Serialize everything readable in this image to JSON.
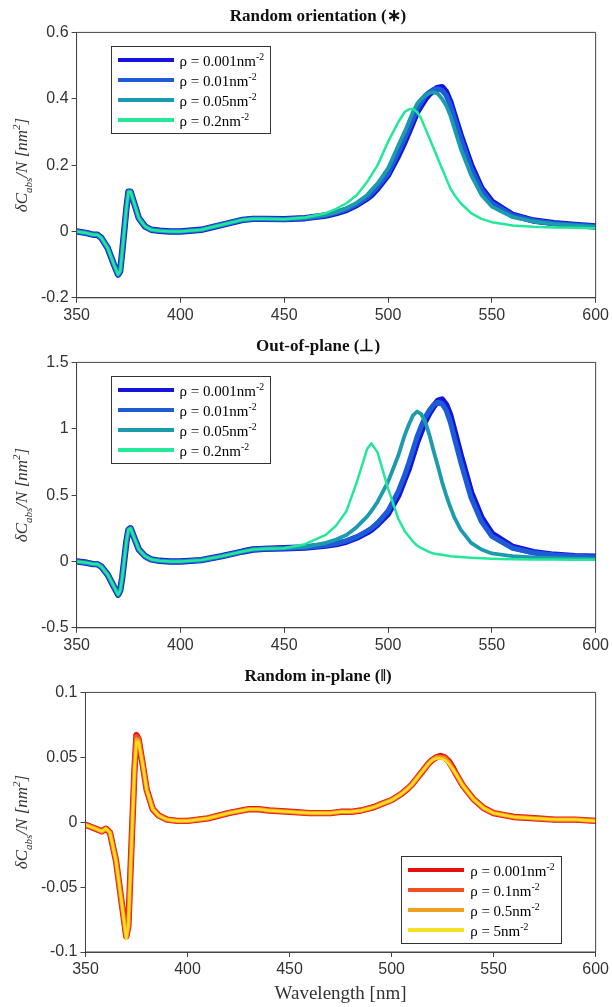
{
  "chart_data": [
    {
      "type": "line",
      "title": "Random orientation (∗)",
      "ylabel": "δC$_{abs}$/N [nm$^{2}$]",
      "xlim": [
        350,
        600
      ],
      "xticks": [
        350,
        400,
        450,
        500,
        550,
        600
      ],
      "ylim": [
        -0.2,
        0.6
      ],
      "yticks": [
        -0.2,
        0,
        0.2,
        0.4,
        0.6
      ],
      "grid": false,
      "legend": "top left",
      "marker": "none",
      "line_style": "solid",
      "x": [
        350,
        355,
        358,
        360,
        362,
        365,
        368,
        370,
        371,
        372,
        374,
        375,
        376,
        378,
        380,
        383,
        386,
        390,
        395,
        400,
        410,
        420,
        430,
        435,
        440,
        450,
        460,
        470,
        475,
        480,
        485,
        490,
        492,
        495,
        500,
        505,
        508,
        510,
        512,
        514,
        516,
        518,
        520,
        522,
        524,
        526,
        528,
        530,
        532,
        535,
        540,
        545,
        550,
        560,
        570,
        580,
        590,
        600
      ],
      "series": [
        {
          "name": "ρ = 0.001nm$^{-2}$",
          "color": "#1414dc",
          "values": [
            0,
            -0.005,
            -0.01,
            -0.01,
            -0.02,
            -0.05,
            -0.1,
            -0.13,
            -0.12,
            -0.06,
            0.07,
            0.12,
            0.12,
            0.08,
            0.04,
            0.015,
            0.005,
            0.002,
            0,
            0,
            0.005,
            0.02,
            0.035,
            0.038,
            0.038,
            0.037,
            0.04,
            0.048,
            0.055,
            0.065,
            0.08,
            0.1,
            0.11,
            0.13,
            0.17,
            0.23,
            0.27,
            0.3,
            0.33,
            0.36,
            0.38,
            0.4,
            0.415,
            0.425,
            0.433,
            0.435,
            0.42,
            0.39,
            0.35,
            0.29,
            0.2,
            0.13,
            0.09,
            0.05,
            0.033,
            0.025,
            0.02,
            0.015
          ]
        },
        {
          "name": "ρ = 0.01nm$^{-2}$",
          "color": "#1c5cd6",
          "values": [
            0,
            -0.005,
            -0.01,
            -0.01,
            -0.02,
            -0.05,
            -0.1,
            -0.13,
            -0.12,
            -0.06,
            0.07,
            0.12,
            0.12,
            0.08,
            0.04,
            0.015,
            0.005,
            0.002,
            0,
            0,
            0.005,
            0.02,
            0.035,
            0.038,
            0.038,
            0.037,
            0.04,
            0.049,
            0.057,
            0.067,
            0.082,
            0.103,
            0.115,
            0.135,
            0.175,
            0.24,
            0.28,
            0.31,
            0.34,
            0.37,
            0.39,
            0.41,
            0.42,
            0.428,
            0.43,
            0.425,
            0.41,
            0.38,
            0.34,
            0.28,
            0.19,
            0.125,
            0.085,
            0.048,
            0.032,
            0.024,
            0.019,
            0.015
          ]
        },
        {
          "name": "ρ = 0.05nm$^{-2}$",
          "color": "#1c9aae",
          "values": [
            0,
            -0.005,
            -0.01,
            -0.01,
            -0.02,
            -0.05,
            -0.1,
            -0.13,
            -0.12,
            -0.06,
            0.07,
            0.12,
            0.12,
            0.08,
            0.04,
            0.015,
            0.005,
            0.002,
            0,
            0,
            0.005,
            0.02,
            0.035,
            0.038,
            0.038,
            0.037,
            0.041,
            0.05,
            0.058,
            0.07,
            0.087,
            0.11,
            0.125,
            0.145,
            0.19,
            0.26,
            0.3,
            0.33,
            0.36,
            0.385,
            0.4,
            0.41,
            0.418,
            0.42,
            0.415,
            0.4,
            0.38,
            0.35,
            0.31,
            0.25,
            0.17,
            0.11,
            0.075,
            0.043,
            0.03,
            0.022,
            0.018,
            0.014
          ]
        },
        {
          "name": "ρ = 0.2nm$^{-2}$",
          "color": "#22e898",
          "values": [
            0,
            -0.005,
            -0.01,
            -0.01,
            -0.02,
            -0.05,
            -0.1,
            -0.13,
            -0.12,
            -0.06,
            0.07,
            0.12,
            0.12,
            0.08,
            0.04,
            0.015,
            0.005,
            0.002,
            0,
            0,
            0.005,
            0.02,
            0.035,
            0.038,
            0.038,
            0.037,
            0.042,
            0.055,
            0.068,
            0.085,
            0.11,
            0.15,
            0.17,
            0.2,
            0.27,
            0.33,
            0.36,
            0.368,
            0.37,
            0.36,
            0.34,
            0.31,
            0.28,
            0.25,
            0.22,
            0.19,
            0.16,
            0.13,
            0.11,
            0.085,
            0.055,
            0.038,
            0.028,
            0.018,
            0.014,
            0.012,
            0.011,
            0.01
          ]
        }
      ]
    },
    {
      "type": "line",
      "title": "Out-of-plane (⊥)",
      "ylabel": "δC$_{abs}$/N [nm$^{2}$]",
      "xlim": [
        350,
        600
      ],
      "xticks": [
        350,
        400,
        450,
        500,
        550,
        600
      ],
      "ylim": [
        -0.5,
        1.5
      ],
      "yticks": [
        -0.5,
        0,
        0.5,
        1,
        1.5
      ],
      "grid": false,
      "legend": "top left",
      "marker": "none",
      "line_style": "solid",
      "x": [
        350,
        355,
        358,
        360,
        362,
        365,
        368,
        370,
        371,
        372,
        374,
        375,
        376,
        378,
        380,
        383,
        386,
        390,
        395,
        400,
        410,
        420,
        430,
        435,
        440,
        450,
        460,
        470,
        475,
        480,
        485,
        490,
        492,
        495,
        500,
        505,
        508,
        510,
        512,
        514,
        516,
        518,
        520,
        522,
        524,
        526,
        528,
        530,
        532,
        535,
        540,
        545,
        550,
        560,
        570,
        580,
        590,
        600
      ],
      "series": [
        {
          "name": "ρ = 0.001nm$^{-2}$",
          "color": "#1414dc",
          "values": [
            0,
            -0.01,
            -0.02,
            -0.02,
            -0.04,
            -0.1,
            -0.19,
            -0.25,
            -0.22,
            -0.12,
            0.15,
            0.24,
            0.25,
            0.17,
            0.09,
            0.04,
            0.015,
            0.005,
            0,
            0,
            0.01,
            0.04,
            0.075,
            0.09,
            0.095,
            0.1,
            0.105,
            0.12,
            0.13,
            0.15,
            0.18,
            0.22,
            0.24,
            0.28,
            0.36,
            0.5,
            0.62,
            0.7,
            0.8,
            0.9,
            0.98,
            1.06,
            1.12,
            1.17,
            1.21,
            1.22,
            1.18,
            1.1,
            0.98,
            0.8,
            0.52,
            0.33,
            0.21,
            0.11,
            0.07,
            0.05,
            0.04,
            0.035
          ]
        },
        {
          "name": "ρ = 0.01nm$^{-2}$",
          "color": "#1c5cd6",
          "values": [
            0,
            -0.01,
            -0.02,
            -0.02,
            -0.04,
            -0.1,
            -0.19,
            -0.25,
            -0.22,
            -0.12,
            0.15,
            0.24,
            0.25,
            0.17,
            0.09,
            0.04,
            0.015,
            0.005,
            0,
            0,
            0.01,
            0.04,
            0.075,
            0.09,
            0.095,
            0.1,
            0.106,
            0.122,
            0.135,
            0.155,
            0.185,
            0.23,
            0.25,
            0.29,
            0.38,
            0.53,
            0.65,
            0.74,
            0.84,
            0.94,
            1.02,
            1.09,
            1.14,
            1.18,
            1.2,
            1.19,
            1.14,
            1.05,
            0.93,
            0.75,
            0.48,
            0.3,
            0.19,
            0.1,
            0.065,
            0.048,
            0.038,
            0.033
          ]
        },
        {
          "name": "ρ = 0.05nm$^{-2}$",
          "color": "#1c9aae",
          "values": [
            0,
            -0.01,
            -0.02,
            -0.02,
            -0.04,
            -0.1,
            -0.19,
            -0.25,
            -0.22,
            -0.12,
            0.15,
            0.24,
            0.25,
            0.17,
            0.09,
            0.04,
            0.015,
            0.005,
            0,
            0,
            0.01,
            0.04,
            0.075,
            0.09,
            0.095,
            0.1,
            0.11,
            0.14,
            0.165,
            0.2,
            0.26,
            0.34,
            0.38,
            0.45,
            0.6,
            0.8,
            0.95,
            1.03,
            1.1,
            1.13,
            1.11,
            1.05,
            0.95,
            0.83,
            0.72,
            0.6,
            0.5,
            0.41,
            0.33,
            0.24,
            0.14,
            0.09,
            0.06,
            0.04,
            0.03,
            0.025,
            0.022,
            0.02
          ]
        },
        {
          "name": "ρ = 0.2nm$^{-2}$",
          "color": "#22e898",
          "values": [
            0,
            -0.01,
            -0.02,
            -0.02,
            -0.04,
            -0.1,
            -0.19,
            -0.25,
            -0.22,
            -0.12,
            0.15,
            0.24,
            0.25,
            0.17,
            0.09,
            0.04,
            0.015,
            0.005,
            0,
            0,
            0.01,
            0.04,
            0.075,
            0.09,
            0.095,
            0.1,
            0.13,
            0.2,
            0.27,
            0.38,
            0.6,
            0.85,
            0.89,
            0.82,
            0.55,
            0.32,
            0.23,
            0.19,
            0.15,
            0.12,
            0.1,
            0.085,
            0.07,
            0.06,
            0.055,
            0.05,
            0.045,
            0.04,
            0.037,
            0.033,
            0.028,
            0.024,
            0.021,
            0.017,
            0.015,
            0.014,
            0.013,
            0.012
          ]
        }
      ]
    },
    {
      "type": "line",
      "title": "Random in-plane (‖)",
      "xlabel": "Wavelength [nm]",
      "ylabel": "δC$_{abs}$/N [nm$^{2}$]",
      "xlim": [
        350,
        600
      ],
      "xticks": [
        350,
        400,
        450,
        500,
        550,
        600
      ],
      "ylim": [
        -0.1,
        0.1
      ],
      "yticks": [
        -0.1,
        -0.05,
        0,
        0.05,
        0.1
      ],
      "grid": false,
      "legend": "bottom right",
      "marker": "none",
      "line_style": "solid",
      "x": [
        350,
        355,
        358,
        360,
        362,
        365,
        368,
        370,
        371,
        372,
        374,
        375,
        376,
        378,
        380,
        383,
        386,
        390,
        395,
        400,
        410,
        420,
        430,
        435,
        440,
        450,
        460,
        470,
        475,
        480,
        485,
        490,
        492,
        495,
        500,
        505,
        508,
        510,
        512,
        514,
        516,
        518,
        520,
        522,
        524,
        526,
        528,
        530,
        532,
        535,
        540,
        545,
        550,
        560,
        570,
        580,
        590,
        600
      ],
      "series": [
        {
          "name": "ρ = 0.001nm$^{-2}$",
          "color": "#e41010",
          "values": [
            -0.002,
            -0.005,
            -0.007,
            -0.005,
            -0.008,
            -0.03,
            -0.065,
            -0.088,
            -0.08,
            -0.04,
            0.04,
            0.067,
            0.064,
            0.045,
            0.025,
            0.01,
            0.005,
            0.002,
            0.001,
            0.001,
            0.003,
            0.007,
            0.01,
            0.01,
            0.009,
            0.008,
            0.007,
            0.007,
            0.008,
            0.008,
            0.009,
            0.011,
            0.012,
            0.014,
            0.017,
            0.022,
            0.026,
            0.029,
            0.033,
            0.037,
            0.041,
            0.045,
            0.048,
            0.05,
            0.051,
            0.05,
            0.047,
            0.042,
            0.036,
            0.028,
            0.018,
            0.011,
            0.007,
            0.004,
            0.003,
            0.002,
            0.002,
            0.001
          ]
        },
        {
          "name": "ρ = 0.1nm$^{-2}$",
          "color": "#f05020",
          "values": [
            -0.002,
            -0.005,
            -0.007,
            -0.005,
            -0.008,
            -0.03,
            -0.065,
            -0.088,
            -0.08,
            -0.04,
            0.04,
            0.066,
            0.064,
            0.045,
            0.025,
            0.01,
            0.005,
            0.002,
            0.001,
            0.001,
            0.003,
            0.007,
            0.01,
            0.01,
            0.009,
            0.008,
            0.007,
            0.007,
            0.008,
            0.008,
            0.009,
            0.011,
            0.012,
            0.014,
            0.017,
            0.022,
            0.026,
            0.029,
            0.033,
            0.037,
            0.041,
            0.045,
            0.048,
            0.05,
            0.05,
            0.05,
            0.046,
            0.041,
            0.036,
            0.028,
            0.018,
            0.011,
            0.007,
            0.004,
            0.003,
            0.002,
            0.002,
            0.001
          ]
        },
        {
          "name": "ρ = 0.5nm$^{-2}$",
          "color": "#f0a020",
          "values": [
            -0.002,
            -0.005,
            -0.007,
            -0.005,
            -0.008,
            -0.03,
            -0.065,
            -0.089,
            -0.08,
            -0.04,
            0.04,
            0.064,
            0.063,
            0.045,
            0.025,
            0.01,
            0.005,
            0.002,
            0.001,
            0.001,
            0.003,
            0.007,
            0.01,
            0.01,
            0.009,
            0.008,
            0.007,
            0.007,
            0.008,
            0.008,
            0.009,
            0.011,
            0.012,
            0.014,
            0.017,
            0.022,
            0.026,
            0.029,
            0.033,
            0.037,
            0.041,
            0.045,
            0.048,
            0.05,
            0.05,
            0.049,
            0.046,
            0.041,
            0.036,
            0.028,
            0.018,
            0.011,
            0.007,
            0.004,
            0.003,
            0.002,
            0.002,
            0.001
          ]
        },
        {
          "name": "ρ = 5nm$^{-2}$",
          "color": "#f8e020",
          "values": [
            -0.002,
            -0.005,
            -0.007,
            -0.005,
            -0.008,
            -0.03,
            -0.065,
            -0.09,
            -0.08,
            -0.04,
            0.04,
            0.062,
            0.062,
            0.045,
            0.025,
            0.01,
            0.005,
            0.002,
            0.001,
            0.001,
            0.003,
            0.007,
            0.01,
            0.01,
            0.009,
            0.008,
            0.007,
            0.007,
            0.008,
            0.008,
            0.009,
            0.011,
            0.012,
            0.014,
            0.017,
            0.022,
            0.026,
            0.029,
            0.033,
            0.037,
            0.041,
            0.045,
            0.048,
            0.049,
            0.049,
            0.048,
            0.045,
            0.041,
            0.036,
            0.028,
            0.018,
            0.011,
            0.007,
            0.004,
            0.003,
            0.002,
            0.002,
            0.001
          ]
        }
      ]
    }
  ]
}
